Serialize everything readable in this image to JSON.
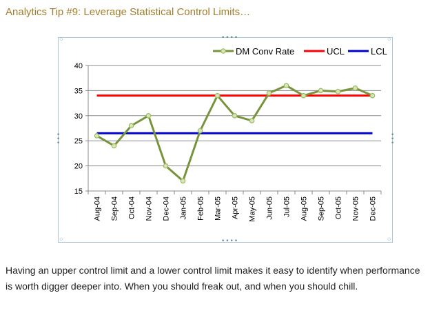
{
  "header": {
    "title": "Analytics Tip #9: Leverage Statistical Control Limits…"
  },
  "chart_data": {
    "type": "line",
    "title": "",
    "xlabel": "",
    "ylabel": "",
    "categories": [
      "Aug-04",
      "Sep-04",
      "Oct-04",
      "Nov-04",
      "Dec-04",
      "Jan-05",
      "Feb-05",
      "Mar-05",
      "Apr-05",
      "May-05",
      "Jun-05",
      "Jul-05",
      "Aug-05",
      "Sep-05",
      "Oct-05",
      "Nov-05",
      "Dec-05"
    ],
    "ylim": [
      15,
      40
    ],
    "yticks": [
      15,
      20,
      25,
      30,
      35,
      40
    ],
    "grid": true,
    "legend_position": "top-right",
    "series": [
      {
        "name": "DM Conv Rate",
        "color": "#77933c",
        "marker": "circle",
        "values": [
          26,
          24,
          28,
          30,
          20,
          17,
          27,
          34,
          30,
          29,
          34.5,
          36,
          34,
          35,
          34.8,
          35.5,
          34
        ]
      },
      {
        "name": "UCL",
        "color": "#ff0000",
        "values": [
          34,
          34,
          34,
          34,
          34,
          34,
          34,
          34,
          34,
          34,
          34,
          34,
          34,
          34,
          34,
          34,
          34
        ]
      },
      {
        "name": "LCL",
        "color": "#0000cc",
        "values": [
          26.5,
          26.5,
          26.5,
          26.5,
          26.5,
          26.5,
          26.5,
          26.5,
          26.5,
          26.5,
          26.5,
          26.5,
          26.5,
          26.5,
          26.5,
          26.5,
          26.5
        ]
      }
    ]
  },
  "body": {
    "text": "Having an upper control limit and a lower control limit makes it easy to identify when performance is worth digger deeper into. When you should freak out, and when you should chill."
  }
}
